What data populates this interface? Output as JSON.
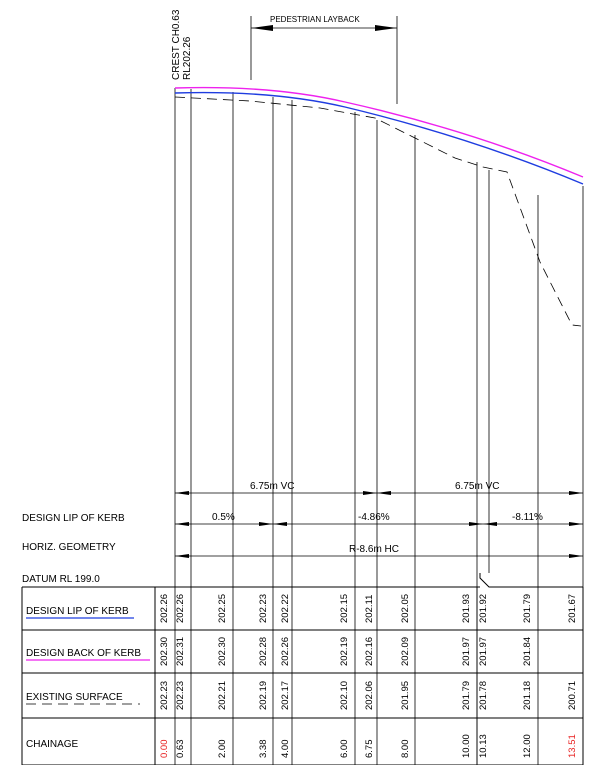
{
  "top_labels": {
    "crest_line1": "CREST CH0.63",
    "crest_line2": "RL202.26",
    "layback": "PEDESTRIAN LAYBACK"
  },
  "vc_labels": [
    "6.75m VC",
    "6.75m VC"
  ],
  "row_labels": {
    "lip_grade": "DESIGN LIP OF KERB",
    "horiz": "HORIZ. GEOMETRY",
    "datum": "DATUM RL 199.0"
  },
  "grades": [
    "0.5%",
    "-4.86%",
    "-8.11%"
  ],
  "horiz_geometry": "R-8.6m HC",
  "table": {
    "labels": [
      "DESIGN LIP OF KERB",
      "DESIGN BACK OF KERB",
      "EXISTING SURFACE",
      "CHAINAGE"
    ],
    "lip": [
      "202.26",
      "202.26",
      "202.25",
      "202.23",
      "202.22",
      "202.15",
      "202.11",
      "202.05",
      "201.93",
      "201.92",
      "201.79",
      "201.67"
    ],
    "back": [
      "202.30",
      "202.31",
      "202.30",
      "202.28",
      "202.26",
      "202.19",
      "202.16",
      "202.09",
      "201.97",
      "201.97",
      "201.84",
      ""
    ],
    "existing": [
      "202.23",
      "202.23",
      "202.21",
      "202.19",
      "202.17",
      "202.10",
      "202.06",
      "201.95",
      "201.79",
      "201.78",
      "201.18",
      "200.71"
    ],
    "chainage": [
      "0.00",
      "0.63",
      "2.00",
      "3.38",
      "4.00",
      "6.00",
      "6.75",
      "8.00",
      "10.00",
      "10.13",
      "12.00",
      "13.51"
    ]
  },
  "colors": {
    "lip": "#1f3de0",
    "back": "#ee22ee",
    "highlight": "#e82020",
    "line": "#000000"
  }
}
